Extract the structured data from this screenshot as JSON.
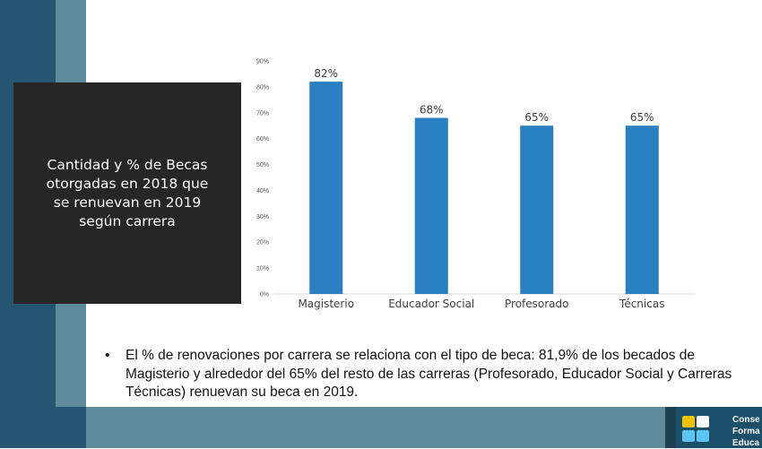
{
  "slide": {
    "title_box": "Cantidad y % de Becas otorgadas en 2018 que se renuevan  en 2019 según carrera",
    "bullet_symbol": "•",
    "bullet_text": "El % de renovaciones por carrera se relaciona con el tipo de beca: 81,9% de los becados de Magisterio y alrededor del 65% del resto de las carreras (Profesorado, Educador Social y Carreras Técnicas) renuevan su beca en 2019.",
    "logo_lines": [
      "Conse",
      "Forma",
      "Educa"
    ]
  },
  "colors": {
    "bar": "#2a7fc1",
    "dark_stripe": "#255570",
    "light_stripe": "#5f8c9d",
    "title_box": "#262626",
    "logo_squares": [
      "#f2c200",
      "#ffffff",
      "#5bc5f2",
      "#5bc5f2"
    ]
  },
  "chart_data": {
    "type": "bar",
    "categories": [
      "Magisterio",
      "Educador Social",
      "Profesorado",
      "Técnicas"
    ],
    "values": [
      82,
      68,
      65,
      65
    ],
    "data_labels": [
      "82%",
      "68%",
      "65%",
      "65%"
    ],
    "y_ticks": [
      "0%",
      "10%",
      "20%",
      "30%",
      "40%",
      "50%",
      "60%",
      "70%",
      "80%",
      "90%"
    ],
    "ylim": [
      0,
      90
    ],
    "grid": false
  }
}
